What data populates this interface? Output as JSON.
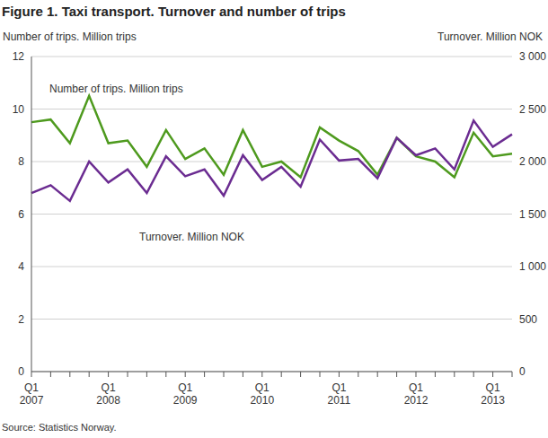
{
  "chart_data": {
    "type": "line",
    "title": "Figure 1. Taxi transport. Turnover and number of trips",
    "y_label": "Number of trips. Million trips",
    "y2_label": "Turnover. Million NOK",
    "source": "Source: Statistics Norway.",
    "categories": [
      "Q1 2007",
      null,
      null,
      null,
      "Q1 2008",
      null,
      null,
      null,
      "Q1 2009",
      null,
      null,
      null,
      "Q1 2010",
      null,
      null,
      null,
      "Q1 2011",
      null,
      null,
      null,
      "Q1 2012",
      null,
      null,
      null,
      "Q1 2013",
      null
    ],
    "series": [
      {
        "name": "Number of trips. Million trips",
        "color": "#4e9a1e",
        "values": [
          9.5,
          9.6,
          8.7,
          10.5,
          8.7,
          8.8,
          7.8,
          9.2,
          8.1,
          8.5,
          7.5,
          9.2,
          7.8,
          8.0,
          7.4,
          9.3,
          8.8,
          8.4,
          7.5,
          8.9,
          8.2,
          8.0,
          7.4,
          9.1,
          8.2,
          8.3
        ]
      },
      {
        "name": "Turnover. Million NOK",
        "color": "#6b2c91",
        "axis": "y2",
        "values": [
          1700,
          1775,
          1625,
          2000,
          1800,
          1925,
          1700,
          2050,
          1860,
          1925,
          1675,
          2060,
          1825,
          1950,
          1760,
          2210,
          2010,
          2025,
          1840,
          2225,
          2060,
          2125,
          1925,
          2390,
          2140,
          2260
        ]
      }
    ],
    "ylim": [
      0,
      12
    ],
    "yticks": [
      0,
      2,
      4,
      6,
      8,
      10,
      12
    ],
    "y2lim": [
      0,
      3000
    ],
    "y2ticks": [
      0,
      500,
      {
        "value": 1000,
        "label": "1 000"
      },
      {
        "value": 1500,
        "label": "1 500"
      },
      {
        "value": 2000,
        "label": "2 000"
      },
      {
        "value": 2500,
        "label": "2 500"
      },
      {
        "value": 3000,
        "label": "3 000"
      }
    ],
    "grid": true
  }
}
